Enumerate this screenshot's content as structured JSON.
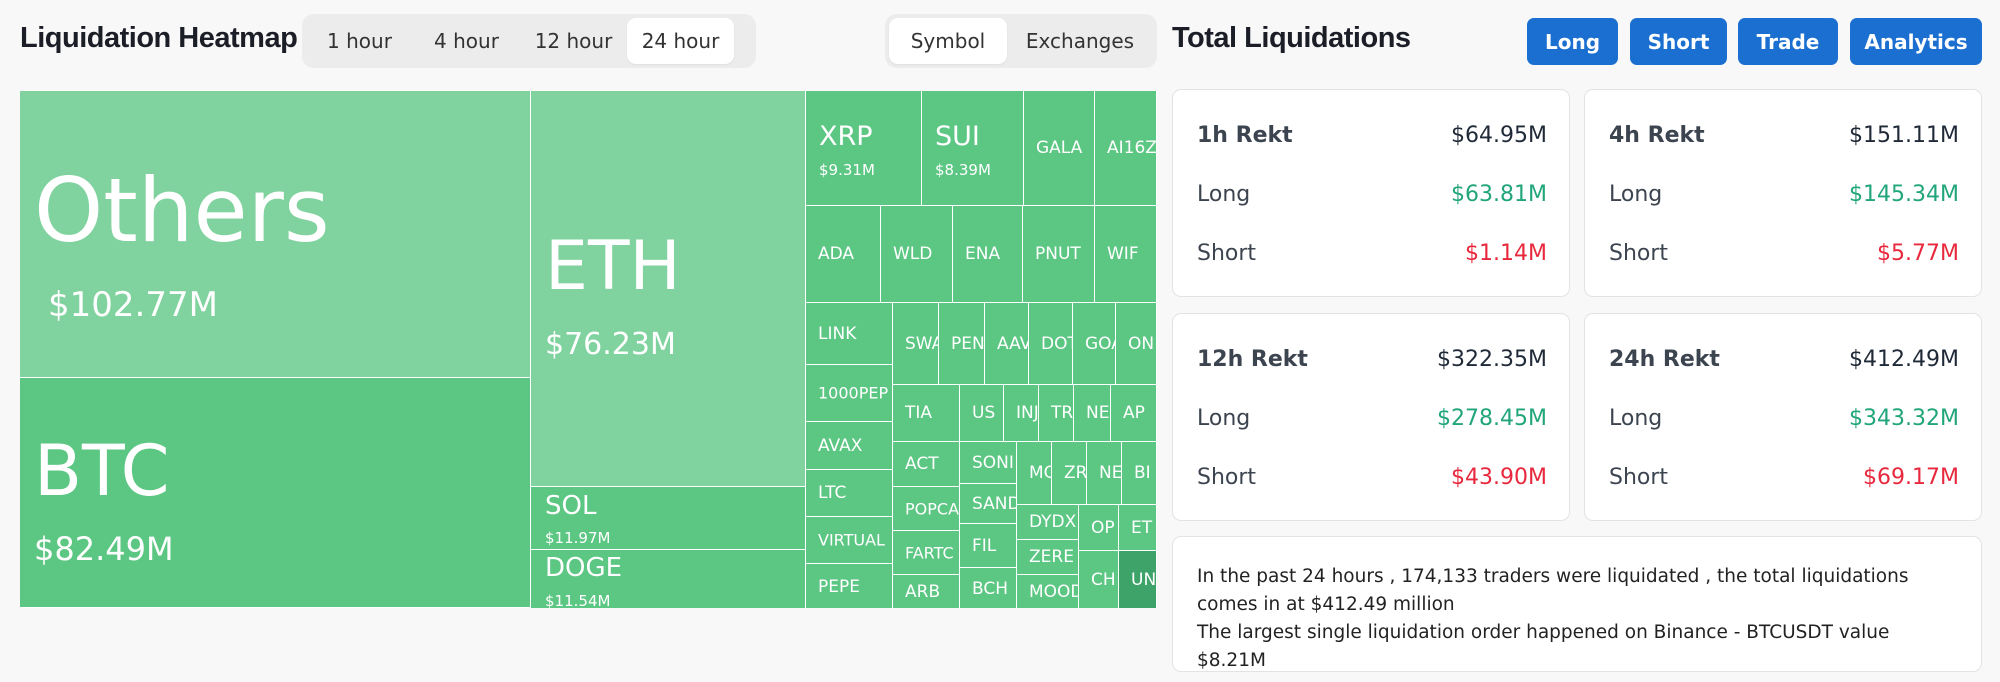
{
  "heatmap": {
    "title": "Liquidation Heatmap",
    "timeframes": [
      "1 hour",
      "4 hour",
      "12 hour",
      "24 hour"
    ],
    "active_timeframe": "24 hour",
    "views": [
      "Symbol",
      "Exchanges"
    ],
    "active_view": "Symbol",
    "tiles": {
      "others": {
        "symbol": "Others",
        "value": "$102.77M"
      },
      "btc": {
        "symbol": "BTC",
        "value": "$82.49M"
      },
      "eth": {
        "symbol": "ETH",
        "value": "$76.23M"
      },
      "sol": {
        "symbol": "SOL",
        "value": "$11.97M"
      },
      "doge": {
        "symbol": "DOGE",
        "value": "$11.54M"
      },
      "xrp": {
        "symbol": "XRP",
        "value": "$9.31M"
      },
      "sui": {
        "symbol": "SUI",
        "value": "$8.39M"
      },
      "gala": "GALA",
      "ai16z": "AI16Z",
      "ada": "ADA",
      "wld": "WLD",
      "ena": "ENA",
      "pnut": "PNUT",
      "wif": "WIF",
      "link": "LINK",
      "swa": "SWA",
      "pen": "PEN",
      "aav": "AAV",
      "dot": "DOT",
      "goa": "GOA",
      "on": "ON",
      "pepe1000": "1000PEP",
      "tia": "TIA",
      "us": "US",
      "inj": "INJ",
      "trx": "TR",
      "ne1": "NE",
      "ap": "AP",
      "avax": "AVAX",
      "act": "ACT",
      "soni": "SONI",
      "mo": "MO",
      "zr": "ZR",
      "ne2": "NE",
      "bi": "BI",
      "ltc": "LTC",
      "popca": "POPCA",
      "sand": "SAND",
      "dydx": "DYDX",
      "op": "OP",
      "et": "ET",
      "virtual": "VIRTUAL",
      "fartc": "FARTC",
      "fil": "FIL",
      "zeree": "ZERE",
      "ch": "CH",
      "un": "UN",
      "pepe": "PEPE",
      "arb": "ARB",
      "bch": "BCH",
      "mood": "MOOD"
    }
  },
  "totals": {
    "title": "Total Liquidations",
    "nav": [
      "Long",
      "Short",
      "Trade",
      "Analytics"
    ],
    "cards": [
      {
        "label": "1h Rekt",
        "total": "$64.95M",
        "long_label": "Long",
        "long": "$63.81M",
        "short_label": "Short",
        "short": "$1.14M"
      },
      {
        "label": "4h Rekt",
        "total": "$151.11M",
        "long_label": "Long",
        "long": "$145.34M",
        "short_label": "Short",
        "short": "$5.77M"
      },
      {
        "label": "12h Rekt",
        "total": "$322.35M",
        "long_label": "Long",
        "long": "$278.45M",
        "short_label": "Short",
        "short": "$43.90M"
      },
      {
        "label": "24h Rekt",
        "total": "$412.49M",
        "long_label": "Long",
        "long": "$343.32M",
        "short_label": "Short",
        "short": "$69.17M"
      }
    ],
    "summary_line1": "In the past 24 hours , 174,133 traders were liquidated , the total liquidations comes in at $412.49 million",
    "summary_line2": "The largest single liquidation order happened on Binance - BTCUSDT value $8.21M"
  },
  "colors": {
    "accent": "#1a6fd1",
    "long": "#21a57b",
    "short": "#e8283d",
    "tile_green": "#5cc683",
    "tile_light": "#80d29f"
  }
}
